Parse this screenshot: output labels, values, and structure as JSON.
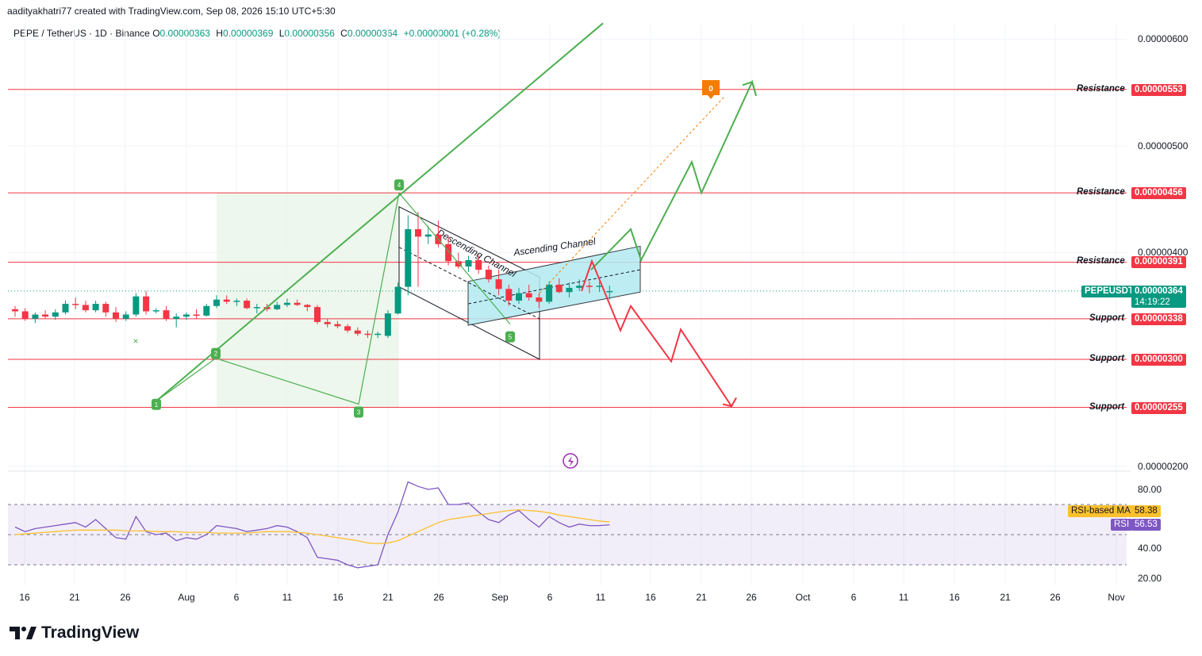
{
  "header": {
    "attribution": "aadityakhatri77 created with TradingView.com, Sep 08, 2026 15:10 UTC+5:30",
    "symbol": "PEPE / TetherUS · 1D · Binance",
    "ohlc": {
      "o_label": "O",
      "o": "0.00000363",
      "h_label": "H",
      "h": "0.00000369",
      "l_label": "L",
      "l": "0.00000356",
      "c_label": "C",
      "c": "0.00000364",
      "change": "+0.00000001 (+0.28%)"
    }
  },
  "footer": {
    "brand": "TradingView"
  },
  "colors": {
    "up": "#089981",
    "down": "#f23645",
    "resistance": "#f23645",
    "green_path": "#4caf50",
    "red_path": "#f23645",
    "channel_fill": "#b2ebf2",
    "rsi_line": "#7e57c2",
    "rsi_ma": "#fbc02d",
    "pattern_fill": "#e8f5e9",
    "label_marker": "#f57c00"
  },
  "price_axis": {
    "ticks": [
      "0.00000600",
      "0.00000500",
      "0.00000400",
      "0.00000200"
    ]
  },
  "rsi_axis": {
    "ticks": [
      "80.00",
      "40.00",
      "20.00"
    ]
  },
  "levels": [
    {
      "name": "Resistance",
      "value": "0.00000553"
    },
    {
      "name": "Resistance",
      "value": "0.00000456"
    },
    {
      "name": "Resistance",
      "value": "0.00000391"
    },
    {
      "name": "Support",
      "value": "0.00000338"
    },
    {
      "name": "Support",
      "value": "0.00000300"
    },
    {
      "name": "Support",
      "value": "0.00000255"
    }
  ],
  "current": {
    "symbol": "PEPEUSDT",
    "price": "0.00000364",
    "countdown": "14:19:22"
  },
  "rsi_tags": {
    "ma_label": "RSI-based MA",
    "ma_value": "58.38",
    "rsi_label": "RSI",
    "rsi_value": "56.53"
  },
  "annotations": {
    "descending": "Descending Channel",
    "ascending": "Ascending Channel",
    "orange_marker": "0",
    "waves": [
      "1",
      "2",
      "3",
      "4",
      "5"
    ]
  },
  "date_axis": [
    "16",
    "21",
    "26",
    "Aug",
    "6",
    "11",
    "16",
    "21",
    "26",
    "Sep",
    "6",
    "11",
    "16",
    "21",
    "26",
    "Oct",
    "6",
    "11",
    "16",
    "21",
    "26",
    "Nov"
  ],
  "chart_data": {
    "type": "candlestick",
    "title": "PEPE / TetherUS · 1D · Binance",
    "price_range": [
      2e-06,
      6e-06
    ],
    "candles": [
      [
        3.47,
        3.5,
        3.4,
        3.45
      ],
      [
        3.45,
        3.48,
        3.36,
        3.38
      ],
      [
        3.38,
        3.44,
        3.34,
        3.42
      ],
      [
        3.42,
        3.46,
        3.38,
        3.4
      ],
      [
        3.4,
        3.47,
        3.37,
        3.44
      ],
      [
        3.44,
        3.55,
        3.42,
        3.52
      ],
      [
        3.52,
        3.58,
        3.47,
        3.51
      ],
      [
        3.51,
        3.55,
        3.44,
        3.46
      ],
      [
        3.46,
        3.55,
        3.44,
        3.52
      ],
      [
        3.52,
        3.54,
        3.4,
        3.44
      ],
      [
        3.44,
        3.49,
        3.35,
        3.38
      ],
      [
        3.38,
        3.45,
        3.36,
        3.42
      ],
      [
        3.42,
        3.62,
        3.4,
        3.59
      ],
      [
        3.59,
        3.64,
        3.42,
        3.45
      ],
      [
        3.45,
        3.48,
        3.43,
        3.46
      ],
      [
        3.46,
        3.5,
        3.36,
        3.38
      ],
      [
        3.38,
        3.43,
        3.3,
        3.4
      ],
      [
        3.4,
        3.44,
        3.37,
        3.42
      ],
      [
        3.42,
        3.47,
        3.38,
        3.41
      ],
      [
        3.41,
        3.52,
        3.4,
        3.5
      ],
      [
        3.5,
        3.6,
        3.48,
        3.56
      ],
      [
        3.56,
        3.6,
        3.52,
        3.54
      ],
      [
        3.54,
        3.57,
        3.5,
        3.55
      ],
      [
        3.55,
        3.57,
        3.47,
        3.48
      ],
      [
        3.48,
        3.52,
        3.43,
        3.49
      ],
      [
        3.49,
        3.52,
        3.45,
        3.47
      ],
      [
        3.47,
        3.54,
        3.46,
        3.51
      ],
      [
        3.51,
        3.57,
        3.49,
        3.53
      ],
      [
        3.53,
        3.56,
        3.5,
        3.51
      ],
      [
        3.51,
        3.52,
        3.45,
        3.49
      ],
      [
        3.49,
        3.51,
        3.33,
        3.35
      ],
      [
        3.35,
        3.38,
        3.3,
        3.33
      ],
      [
        3.33,
        3.36,
        3.29,
        3.31
      ],
      [
        3.31,
        3.33,
        3.25,
        3.27
      ],
      [
        3.27,
        3.3,
        3.22,
        3.24
      ],
      [
        3.24,
        3.27,
        3.2,
        3.23
      ],
      [
        3.23,
        3.26,
        3.2,
        3.24
      ],
      [
        3.22,
        3.46,
        3.2,
        3.43
      ],
      [
        3.43,
        3.72,
        3.42,
        3.68
      ],
      [
        3.68,
        4.35,
        3.6,
        4.22
      ],
      [
        4.22,
        4.38,
        3.68,
        4.15
      ],
      [
        4.15,
        4.25,
        4.08,
        4.17
      ],
      [
        4.17,
        4.3,
        4.05,
        4.08
      ],
      [
        4.08,
        4.15,
        3.88,
        3.92
      ],
      [
        3.92,
        4.0,
        3.85,
        3.87
      ],
      [
        3.87,
        3.97,
        3.82,
        3.93
      ],
      [
        3.93,
        3.98,
        3.8,
        3.84
      ],
      [
        3.84,
        3.88,
        3.72,
        3.75
      ],
      [
        3.75,
        3.84,
        3.6,
        3.66
      ],
      [
        3.66,
        3.7,
        3.5,
        3.55
      ],
      [
        3.55,
        3.67,
        3.52,
        3.62
      ],
      [
        3.62,
        3.7,
        3.55,
        3.58
      ],
      [
        3.58,
        3.62,
        3.48,
        3.54
      ],
      [
        3.54,
        3.73,
        3.52,
        3.7
      ],
      [
        3.7,
        3.76,
        3.62,
        3.63
      ],
      [
        3.63,
        3.72,
        3.58,
        3.67
      ],
      [
        3.67,
        3.75,
        3.64,
        3.69
      ],
      [
        3.69,
        3.73,
        3.62,
        3.68
      ],
      [
        3.68,
        3.73,
        3.63,
        3.69
      ],
      [
        3.63,
        3.69,
        3.56,
        3.64
      ]
    ],
    "rsi": [
      55,
      52,
      54,
      55,
      56,
      57,
      58,
      55,
      60,
      54,
      48,
      47,
      62,
      52,
      50,
      51,
      46,
      48,
      47,
      50,
      56,
      55,
      54,
      52,
      53,
      54,
      56,
      55,
      52,
      48,
      35,
      34,
      33,
      30,
      28,
      29,
      30,
      50,
      65,
      85,
      82,
      80,
      81,
      70,
      70,
      71,
      65,
      60,
      58,
      63,
      66,
      60,
      55,
      62,
      58,
      55,
      57,
      56,
      56,
      56.53
    ],
    "rsi_ma": [
      50,
      50.5,
      51,
      51.5,
      52,
      52.5,
      53,
      53,
      53,
      53,
      53,
      52.5,
      52.5,
      52.5,
      52,
      52,
      52,
      51.5,
      51.5,
      51.5,
      51,
      51,
      51,
      51,
      51.5,
      52,
      52,
      52,
      51.5,
      51,
      50,
      49,
      48,
      47,
      46,
      44.5,
      44,
      44.5,
      46,
      49,
      52,
      55,
      58,
      60,
      61,
      62,
      63,
      64,
      65,
      66,
      66.5,
      66,
      65.5,
      64.5,
      63,
      62,
      61,
      60,
      59,
      58.38
    ],
    "rsi_levels": [
      70,
      50,
      30
    ],
    "levels": [
      5.53,
      4.56,
      3.91,
      3.38,
      3.0,
      2.55
    ],
    "current_price": 3.64,
    "scale_note": "prices in units of 0.000001 USDT"
  }
}
